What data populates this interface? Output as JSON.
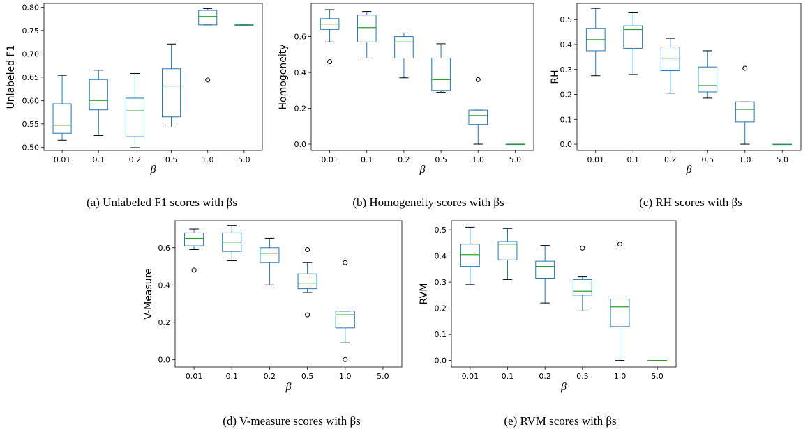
{
  "box_color": "#1f77b4",
  "median_color": "#2ca02c",
  "chart_data": [
    {
      "type": "boxplot",
      "ylabel": "Unlabeled F1",
      "xlabel": "β",
      "caption": "(a) Unlabeled F1 scores with βs",
      "categories": [
        "0.01",
        "0.1",
        "0.2",
        "0.5",
        "1.0",
        "5.0"
      ],
      "ylim": [
        0.493,
        0.808
      ],
      "yticks": [
        0.5,
        0.55,
        0.6,
        0.65,
        0.7,
        0.75,
        0.8
      ],
      "ytick_labels": [
        "0.50",
        "0.55",
        "0.60",
        "0.65",
        "0.70",
        "0.75",
        "0.80"
      ],
      "boxes": [
        {
          "whislo": 0.515,
          "q1": 0.53,
          "med": 0.547,
          "q3": 0.593,
          "whishi": 0.654,
          "fliers": []
        },
        {
          "whislo": 0.525,
          "q1": 0.58,
          "med": 0.6,
          "q3": 0.645,
          "whishi": 0.665,
          "fliers": []
        },
        {
          "whislo": 0.499,
          "q1": 0.523,
          "med": 0.578,
          "q3": 0.605,
          "whishi": 0.658,
          "fliers": []
        },
        {
          "whislo": 0.543,
          "q1": 0.565,
          "med": 0.631,
          "q3": 0.668,
          "whishi": 0.721,
          "fliers": []
        },
        {
          "whislo": 0.762,
          "q1": 0.762,
          "med": 0.78,
          "q3": 0.793,
          "whishi": 0.797,
          "fliers": [
            0.644
          ]
        },
        {
          "whislo": 0.762,
          "q1": 0.762,
          "med": 0.762,
          "q3": 0.762,
          "whishi": 0.762,
          "fliers": []
        }
      ]
    },
    {
      "type": "boxplot",
      "ylabel": "Homogeneity",
      "xlabel": "β",
      "caption": "(b) Homogeneity scores with βs",
      "categories": [
        "0.01",
        "0.1",
        "0.2",
        "0.5",
        "1.0",
        "5.0"
      ],
      "ylim": [
        -0.035,
        0.785
      ],
      "yticks": [
        0.0,
        0.2,
        0.4,
        0.6
      ],
      "ytick_labels": [
        "0.0",
        "0.2",
        "0.4",
        "0.6"
      ],
      "boxes": [
        {
          "whislo": 0.57,
          "q1": 0.64,
          "med": 0.67,
          "q3": 0.7,
          "whishi": 0.75,
          "fliers": [
            0.46
          ]
        },
        {
          "whislo": 0.48,
          "q1": 0.57,
          "med": 0.65,
          "q3": 0.72,
          "whishi": 0.74,
          "fliers": []
        },
        {
          "whislo": 0.37,
          "q1": 0.48,
          "med": 0.57,
          "q3": 0.6,
          "whishi": 0.62,
          "fliers": []
        },
        {
          "whislo": 0.29,
          "q1": 0.3,
          "med": 0.36,
          "q3": 0.48,
          "whishi": 0.56,
          "fliers": []
        },
        {
          "whislo": 0.0,
          "q1": 0.11,
          "med": 0.16,
          "q3": 0.19,
          "whishi": 0.19,
          "fliers": [
            0.36
          ]
        },
        {
          "whislo": 0.0,
          "q1": 0.0,
          "med": 0.0,
          "q3": 0.0,
          "whishi": 0.0,
          "fliers": []
        }
      ]
    },
    {
      "type": "boxplot",
      "ylabel": "RH",
      "xlabel": "β",
      "caption": "(c) RH scores with βs",
      "categories": [
        "0.01",
        "0.1",
        "0.2",
        "0.5",
        "1.0",
        "5.0"
      ],
      "ylim": [
        -0.025,
        0.565
      ],
      "yticks": [
        0.0,
        0.1,
        0.2,
        0.3,
        0.4,
        0.5
      ],
      "ytick_labels": [
        "0.0",
        "0.1",
        "0.2",
        "0.3",
        "0.4",
        "0.5"
      ],
      "boxes": [
        {
          "whislo": 0.275,
          "q1": 0.375,
          "med": 0.42,
          "q3": 0.465,
          "whishi": 0.545,
          "fliers": []
        },
        {
          "whislo": 0.28,
          "q1": 0.385,
          "med": 0.46,
          "q3": 0.475,
          "whishi": 0.53,
          "fliers": []
        },
        {
          "whislo": 0.205,
          "q1": 0.295,
          "med": 0.345,
          "q3": 0.39,
          "whishi": 0.425,
          "fliers": []
        },
        {
          "whislo": 0.185,
          "q1": 0.21,
          "med": 0.235,
          "q3": 0.31,
          "whishi": 0.375,
          "fliers": []
        },
        {
          "whislo": 0.0,
          "q1": 0.09,
          "med": 0.14,
          "q3": 0.17,
          "whishi": 0.17,
          "fliers": [
            0.305
          ]
        },
        {
          "whislo": 0.0,
          "q1": 0.0,
          "med": 0.0,
          "q3": 0.0,
          "whishi": 0.0,
          "fliers": []
        }
      ]
    },
    {
      "type": "boxplot",
      "ylabel": "V-Measure",
      "xlabel": "β",
      "caption": "(d) V-measure scores with βs",
      "categories": [
        "0.01",
        "0.1",
        "0.2",
        "0.5",
        "1.0",
        "5.0"
      ],
      "ylim": [
        -0.04,
        0.745
      ],
      "yticks": [
        0.0,
        0.2,
        0.4,
        0.6
      ],
      "ytick_labels": [
        "0.0",
        "0.2",
        "0.4",
        "0.6"
      ],
      "boxes": [
        {
          "whislo": 0.59,
          "q1": 0.61,
          "med": 0.65,
          "q3": 0.68,
          "whishi": 0.7,
          "fliers": [
            0.48
          ]
        },
        {
          "whislo": 0.53,
          "q1": 0.58,
          "med": 0.63,
          "q3": 0.68,
          "whishi": 0.72,
          "fliers": []
        },
        {
          "whislo": 0.4,
          "q1": 0.52,
          "med": 0.57,
          "q3": 0.6,
          "whishi": 0.65,
          "fliers": []
        },
        {
          "whislo": 0.36,
          "q1": 0.38,
          "med": 0.41,
          "q3": 0.46,
          "whishi": 0.52,
          "fliers": [
            0.24,
            0.59
          ]
        },
        {
          "whislo": 0.09,
          "q1": 0.17,
          "med": 0.24,
          "q3": 0.26,
          "whishi": 0.26,
          "fliers": [
            0.0,
            0.52
          ]
        },
        null
      ]
    },
    {
      "type": "boxplot",
      "ylabel": "RVM",
      "xlabel": "β",
      "caption": "(e) RVM scores with βs",
      "categories": [
        "0.01",
        "0.1",
        "0.2",
        "0.5",
        "1.0",
        "5.0"
      ],
      "ylim": [
        -0.025,
        0.535
      ],
      "yticks": [
        0.0,
        0.1,
        0.2,
        0.3,
        0.4,
        0.5
      ],
      "ytick_labels": [
        "0.0",
        "0.1",
        "0.2",
        "0.3",
        "0.4",
        "0.5"
      ],
      "boxes": [
        {
          "whislo": 0.29,
          "q1": 0.36,
          "med": 0.405,
          "q3": 0.445,
          "whishi": 0.51,
          "fliers": []
        },
        {
          "whislo": 0.31,
          "q1": 0.385,
          "med": 0.445,
          "q3": 0.455,
          "whishi": 0.505,
          "fliers": []
        },
        {
          "whislo": 0.22,
          "q1": 0.315,
          "med": 0.36,
          "q3": 0.38,
          "whishi": 0.44,
          "fliers": []
        },
        {
          "whislo": 0.19,
          "q1": 0.25,
          "med": 0.265,
          "q3": 0.31,
          "whishi": 0.32,
          "fliers": [
            0.43
          ]
        },
        {
          "whislo": 0.0,
          "q1": 0.13,
          "med": 0.205,
          "q3": 0.235,
          "whishi": 0.235,
          "fliers": [
            0.445
          ]
        },
        {
          "whislo": 0.0,
          "q1": 0.0,
          "med": 0.0,
          "q3": 0.0,
          "whishi": 0.0,
          "fliers": []
        }
      ]
    }
  ]
}
